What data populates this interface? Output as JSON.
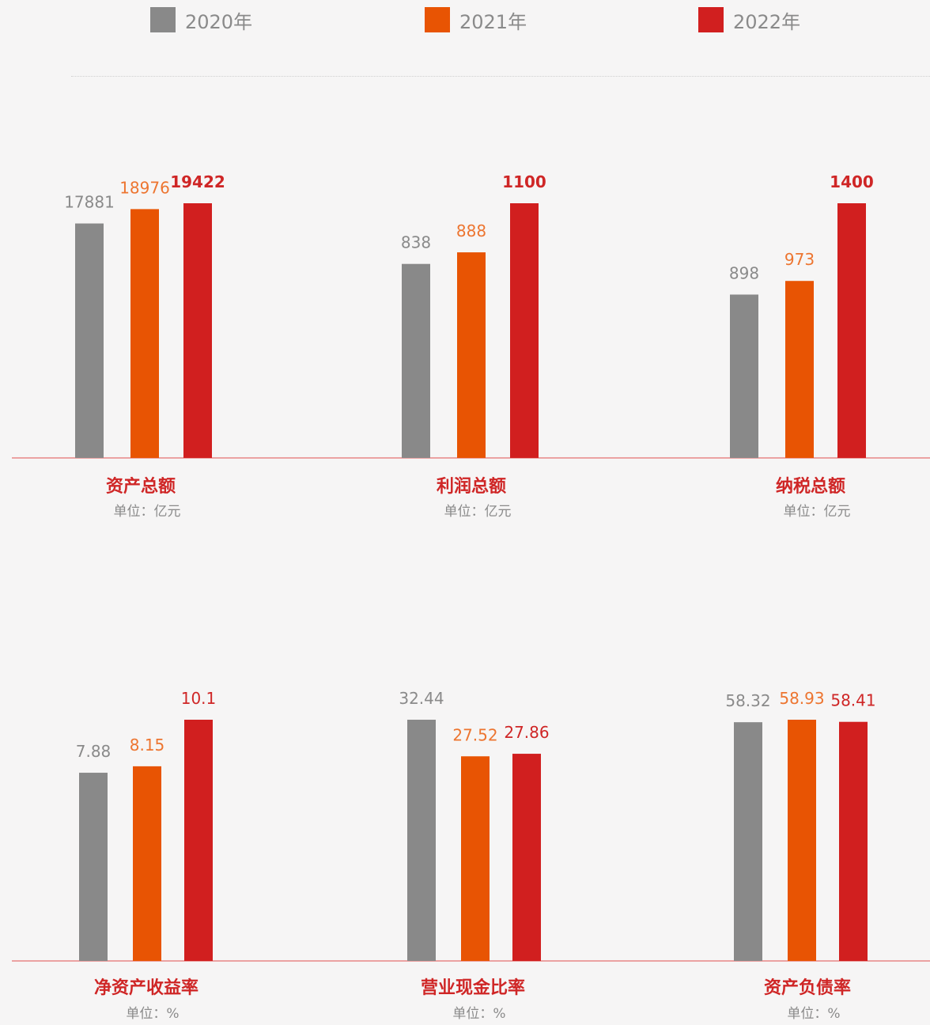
{
  "legend": [
    {
      "label": "2020年",
      "color": "#898989"
    },
    {
      "label": "2021年",
      "color": "#e85403"
    },
    {
      "label": "2022年",
      "color": "#d11f1f"
    }
  ],
  "colors": {
    "axis": "#e05050",
    "title": "#cf2626",
    "unit": "#8a8a8a",
    "value_2020": "#8a8a8a",
    "value_2021": "#ed7530",
    "value_2022": "#cf2626"
  },
  "chart_data": [
    {
      "type": "bar",
      "title": "资产总额",
      "unit": "单位：亿元",
      "categories": [
        "2020年",
        "2021年",
        "2022年"
      ],
      "values": [
        17881,
        18976,
        19422
      ],
      "labels": [
        "17881",
        "18976",
        "19422"
      ],
      "ylim": [
        0,
        19422
      ]
    },
    {
      "type": "bar",
      "title": "利润总额",
      "unit": "单位：亿元",
      "categories": [
        "2020年",
        "2021年",
        "2022年"
      ],
      "values": [
        838,
        888,
        1100
      ],
      "labels": [
        "838",
        "888",
        "1100"
      ],
      "ylim": [
        0,
        1100
      ]
    },
    {
      "type": "bar",
      "title": "纳税总额",
      "unit": "单位：亿元",
      "categories": [
        "2020年",
        "2021年",
        "2022年"
      ],
      "values": [
        898,
        973,
        1400
      ],
      "labels": [
        "898",
        "973",
        "1400"
      ],
      "ylim": [
        0,
        1400
      ]
    },
    {
      "type": "bar",
      "title": "净资产收益率",
      "unit": "单位：%",
      "categories": [
        "2020年",
        "2021年",
        "2022年"
      ],
      "values": [
        7.88,
        8.15,
        10.1
      ],
      "labels": [
        "7.88",
        "8.15",
        "10.1"
      ],
      "ylim": [
        0,
        10.1
      ]
    },
    {
      "type": "bar",
      "title": "营业现金比率",
      "unit": "单位：%",
      "categories": [
        "2020年",
        "2021年",
        "2022年"
      ],
      "values": [
        32.44,
        27.52,
        27.86
      ],
      "labels": [
        "32.44",
        "27.52",
        "27.86"
      ],
      "ylim": [
        0,
        32.44
      ]
    },
    {
      "type": "bar",
      "title": "资产负债率",
      "unit": "单位：%",
      "categories": [
        "2020年",
        "2021年",
        "2022年"
      ],
      "values": [
        58.32,
        58.93,
        58.41
      ],
      "labels": [
        "58.32",
        "58.93",
        "58.41"
      ],
      "ylim": [
        0,
        58.93
      ]
    }
  ]
}
